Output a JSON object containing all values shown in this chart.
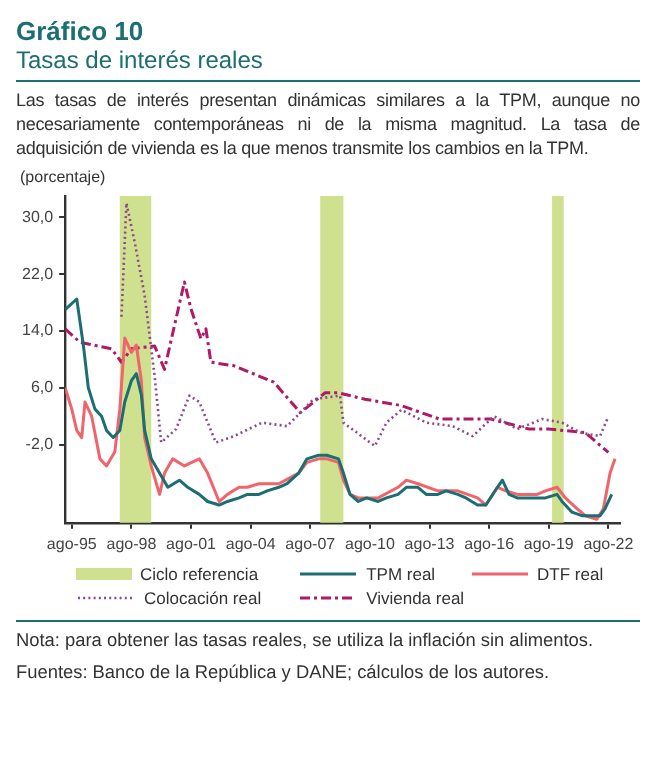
{
  "chart_data": {
    "type": "line",
    "title": "Gráfico 10",
    "subtitle": "Tasas de interés reales",
    "annotations": [
      "Las tasas de interés presentan dinámicas similares a la TPM, aunque no necesariamente contemporáneas ni de la misma magnitud. La tasa de adquisición de vivienda es la que menos transmite los cambios en la TPM.",
      "Nota: para obtener las tasas reales, se utiliza la inflación sin alimentos.",
      "Fuentes: Banco de la República y DANE; cálculos de los autores."
    ],
    "ylabel": "(porcentaje)",
    "xlim": [
      "1995-04",
      "2023-03"
    ],
    "ylim": [
      -13,
      33
    ],
    "xticks": [
      {
        "value": "1995-08",
        "label": "ago-95"
      },
      {
        "value": "1998-08",
        "label": "ago-98"
      },
      {
        "value": "2001-08",
        "label": "ago-01"
      },
      {
        "value": "2004-08",
        "label": "ago-04"
      },
      {
        "value": "2007-08",
        "label": "ago-07"
      },
      {
        "value": "2010-08",
        "label": "ago-10"
      },
      {
        "value": "2013-08",
        "label": "ago-13"
      },
      {
        "value": "2016-08",
        "label": "ago-16"
      },
      {
        "value": "2019-08",
        "label": "ago-19"
      },
      {
        "value": "2022-08",
        "label": "ago-22"
      }
    ],
    "yticks": [
      {
        "value": -2,
        "label": "-2,0"
      },
      {
        "value": 6,
        "label": "6,0"
      },
      {
        "value": 14,
        "label": "14,0"
      },
      {
        "value": 22,
        "label": "22,0"
      },
      {
        "value": 30,
        "label": "30,0"
      }
    ],
    "bands": [
      {
        "axis": "x",
        "from": "1998-01",
        "to": "1999-08",
        "label": "Ciclo referencia",
        "color": "#cfe08f"
      },
      {
        "axis": "x",
        "from": "2008-02",
        "to": "2009-04",
        "color": "#cfe08f"
      },
      {
        "axis": "x",
        "from": "2019-10",
        "to": "2020-05",
        "color": "#cfe08f"
      }
    ],
    "legend": "bottom",
    "series": [
      {
        "name": "TPM real",
        "color": "#1b6e72",
        "line_style": "solid",
        "x": [
          "1995-04",
          "1995-11",
          "1996-03",
          "1996-06",
          "1996-10",
          "1997-02",
          "1997-05",
          "1997-09",
          "1998-01",
          "1998-04",
          "1998-08",
          "1998-11",
          "1999-02",
          "1999-04",
          "1999-08",
          "2000-01",
          "2000-06",
          "2001-01",
          "2001-06",
          "2002-01",
          "2002-06",
          "2003-01",
          "2003-06",
          "2004-01",
          "2004-06",
          "2005-01",
          "2005-06",
          "2006-01",
          "2006-06",
          "2007-01",
          "2007-06",
          "2008-01",
          "2008-06",
          "2009-01",
          "2009-04",
          "2009-08",
          "2010-01",
          "2010-06",
          "2011-01",
          "2011-06",
          "2012-01",
          "2012-06",
          "2013-01",
          "2013-06",
          "2014-01",
          "2014-06",
          "2015-01",
          "2015-06",
          "2016-01",
          "2016-06",
          "2017-01",
          "2017-04",
          "2017-08",
          "2018-01",
          "2018-06",
          "2019-01",
          "2019-06",
          "2020-01",
          "2020-04",
          "2020-10",
          "2021-04",
          "2021-10",
          "2022-03",
          "2022-06",
          "2022-10"
        ],
        "values": [
          17,
          18.5,
          12,
          6,
          3,
          2,
          0,
          -1,
          0,
          4,
          7,
          8,
          5,
          0,
          -4,
          -6,
          -8,
          -7,
          -8,
          -9,
          -10,
          -10.5,
          -10,
          -9.5,
          -9,
          -9,
          -8.5,
          -8,
          -7.5,
          -6,
          -4,
          -3.5,
          -3.5,
          -4,
          -6,
          -9,
          -10,
          -9.5,
          -10,
          -9.5,
          -9,
          -8,
          -8,
          -9,
          -9,
          -8.5,
          -9,
          -9.5,
          -10.5,
          -10.5,
          -8,
          -7,
          -9,
          -9.5,
          -9.5,
          -9.5,
          -9.5,
          -9,
          -10,
          -11.5,
          -12,
          -12,
          -12,
          -11,
          -9
        ]
      },
      {
        "name": "DTF real",
        "color": "#f0646c",
        "line_style": "solid",
        "x": [
          "1995-04",
          "1995-08",
          "1995-11",
          "1996-02",
          "1996-04",
          "1996-08",
          "1997-01",
          "1997-05",
          "1997-10",
          "1998-01",
          "1998-04",
          "1998-08",
          "1998-11",
          "1999-02",
          "1999-04",
          "1999-08",
          "2000-01",
          "2000-04",
          "2000-09",
          "2001-04",
          "2002-01",
          "2002-06",
          "2003-01",
          "2003-06",
          "2004-01",
          "2004-06",
          "2005-01",
          "2006-01",
          "2007-01",
          "2007-06",
          "2008-01",
          "2008-06",
          "2009-01",
          "2009-04",
          "2009-08",
          "2010-01",
          "2011-01",
          "2012-01",
          "2012-06",
          "2013-01",
          "2014-01",
          "2015-01",
          "2016-01",
          "2016-06",
          "2017-01",
          "2017-06",
          "2018-01",
          "2019-01",
          "2019-06",
          "2020-01",
          "2020-06",
          "2021-01",
          "2021-06",
          "2022-01",
          "2022-05",
          "2022-09",
          "2022-12"
        ],
        "values": [
          6,
          3,
          0,
          -1,
          4,
          2,
          -4,
          -5,
          -3,
          3,
          13,
          11,
          12,
          7,
          -1,
          -5,
          -9,
          -6,
          -4,
          -5,
          -4,
          -6,
          -10,
          -9,
          -8,
          -8,
          -7.5,
          -7.5,
          -6,
          -4.5,
          -4,
          -4,
          -4.5,
          -7,
          -9,
          -9.5,
          -9.5,
          -8,
          -7,
          -7.5,
          -8.5,
          -8.5,
          -9.5,
          -10.5,
          -8,
          -8.5,
          -9,
          -9,
          -8.5,
          -8,
          -9.5,
          -11,
          -12,
          -12.5,
          -11,
          -6,
          -4
        ]
      },
      {
        "name": "Colocación real",
        "color": "#8b4a8b",
        "line_style": "dotted",
        "x": [
          "1998-02",
          "1998-05",
          "1998-10",
          "1999-04",
          "1999-10",
          "2000-02",
          "2000-11",
          "2001-07",
          "2002-01",
          "2002-11",
          "2003-10",
          "2005-03",
          "2006-06",
          "2007-10",
          "2009-02",
          "2009-04",
          "2010-11",
          "2011-06",
          "2012-03",
          "2013-06",
          "2014-10",
          "2015-10",
          "2016-11",
          "2018-01",
          "2019-04",
          "2020-04",
          "2021-03",
          "2022-03",
          "2022-08"
        ],
        "values": [
          16,
          32,
          26.5,
          19,
          7.7,
          -1.7,
          0.2,
          4.9,
          4,
          -1.7,
          -0.8,
          1.1,
          0.6,
          4.4,
          4.9,
          1.1,
          -2.2,
          1.1,
          2.9,
          1.1,
          0.6,
          -0.8,
          2,
          0.2,
          1.6,
          1.1,
          -0.3,
          -0.8,
          2
        ]
      },
      {
        "name": "Vivienda real",
        "color": "#b0186a",
        "line_style": "dashed",
        "x": [
          "1995-04",
          "1996-01",
          "1997-08",
          "1998-02",
          "1998-08",
          "1999-10",
          "2000-04",
          "2001-04",
          "2001-08",
          "2002-02",
          "2002-05",
          "2002-08",
          "2003-10",
          "2005-10",
          "2007-02",
          "2008-05",
          "2009-01",
          "2010-05",
          "2012-03",
          "2014-02",
          "2016-09",
          "2018-08",
          "2019-08",
          "2021-06",
          "2022-08"
        ],
        "values": [
          14.3,
          12.4,
          11.5,
          9.6,
          11.5,
          11.9,
          8.6,
          20.9,
          17.1,
          12.9,
          14.3,
          9.6,
          9.1,
          6.8,
          2.5,
          5.3,
          5.3,
          4.4,
          3.5,
          1.6,
          1.6,
          0.2,
          0.2,
          -0.3,
          -3.1
        ]
      }
    ]
  }
}
